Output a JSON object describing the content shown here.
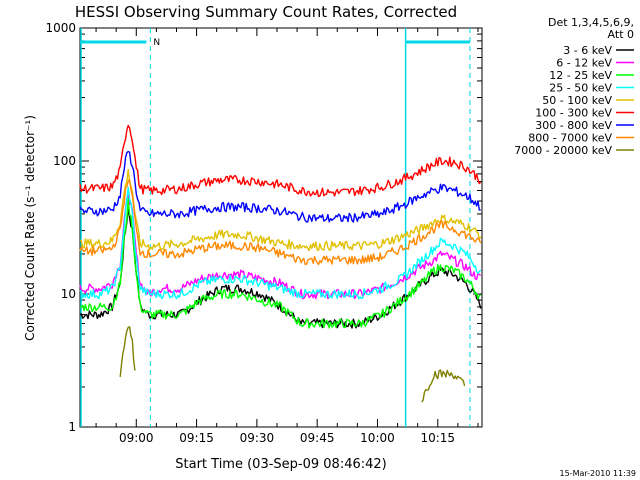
{
  "chart_data": {
    "type": "line",
    "title": "HESSI Observing Summary Count Rates, Corrected",
    "ylabel": "Corrected Count Rate (s⁻¹ detector⁻¹)",
    "xlabel": "Start Time (03-Sep-09 08:46:42)",
    "yscale": "log",
    "ylim": [
      1,
      1000
    ],
    "xlim_minutes_after_0846": [
      0,
      100
    ],
    "y_tick_labels": [
      "1",
      "10",
      "100",
      "1000"
    ],
    "x_ticks": [
      {
        "minute": 14,
        "label": "09:00"
      },
      {
        "minute": 29,
        "label": "09:15"
      },
      {
        "minute": 44,
        "label": "09:30"
      },
      {
        "minute": 59,
        "label": "09:45"
      },
      {
        "minute": 74,
        "label": "10:00"
      },
      {
        "minute": 89,
        "label": "10:15"
      }
    ],
    "legend_header": [
      "Det 1,3,4,5,6,9,",
      "Att 0"
    ],
    "legend_position": "right",
    "footer_date": "15-Mar-2010 11:39",
    "night_label": "N",
    "x": [
      0,
      5,
      8,
      10,
      11,
      12,
      13,
      14,
      15,
      17,
      20,
      25,
      30,
      35,
      40,
      45,
      50,
      55,
      60,
      65,
      70,
      75,
      80,
      85,
      88,
      90,
      93,
      96,
      98,
      100
    ],
    "series": [
      {
        "name": "3 - 6 keV",
        "color": "#000000",
        "values": [
          7,
          7,
          8,
          12,
          25,
          44,
          30,
          15,
          8,
          7,
          7,
          7,
          9,
          11,
          11,
          10,
          8,
          6,
          6,
          6,
          6,
          7,
          9,
          12,
          14,
          15,
          14,
          12,
          10,
          8
        ]
      },
      {
        "name": "6 - 12 keV",
        "color": "#ff00ff",
        "values": [
          11,
          11,
          12,
          17,
          35,
          58,
          40,
          20,
          12,
          10,
          11,
          11,
          13,
          14,
          14,
          13,
          12,
          10,
          10,
          10,
          10,
          11,
          13,
          16,
          18,
          20,
          18,
          16,
          14,
          13
        ]
      },
      {
        "name": "12 - 25 keV",
        "color": "#00ff00",
        "values": [
          8,
          8,
          8,
          12,
          26,
          48,
          32,
          14,
          8,
          7,
          7,
          7,
          9,
          10,
          10,
          9,
          8,
          6,
          6,
          6,
          6,
          7,
          9,
          12,
          15,
          16,
          15,
          13,
          11,
          9
        ]
      },
      {
        "name": "25 - 50 keV",
        "color": "#00ffff",
        "values": [
          10,
          10,
          11,
          16,
          33,
          62,
          40,
          18,
          11,
          10,
          10,
          10,
          12,
          13,
          13,
          12,
          11,
          10,
          10,
          10,
          10,
          11,
          13,
          18,
          22,
          25,
          23,
          20,
          17,
          14
        ]
      },
      {
        "name": "50 - 100 keV",
        "color": "#e0c000",
        "values": [
          24,
          24,
          25,
          35,
          58,
          82,
          60,
          34,
          24,
          23,
          23,
          24,
          26,
          28,
          28,
          26,
          24,
          23,
          23,
          23,
          23,
          24,
          27,
          31,
          35,
          37,
          35,
          33,
          30,
          27
        ]
      },
      {
        "name": "100 - 300 keV",
        "color": "#ff0000",
        "values": [
          62,
          62,
          64,
          85,
          140,
          195,
          150,
          90,
          62,
          60,
          60,
          62,
          68,
          72,
          72,
          70,
          66,
          60,
          58,
          58,
          60,
          64,
          72,
          85,
          95,
          100,
          98,
          90,
          80,
          70
        ]
      },
      {
        "name": "300 - 800 keV",
        "color": "#0000ff",
        "values": [
          42,
          42,
          43,
          55,
          90,
          120,
          95,
          60,
          42,
          40,
          40,
          40,
          43,
          45,
          45,
          44,
          42,
          38,
          37,
          37,
          38,
          40,
          46,
          55,
          60,
          63,
          60,
          55,
          50,
          44
        ]
      },
      {
        "name": "800 - 7000 keV",
        "color": "#ff8800",
        "values": [
          21,
          21,
          22,
          30,
          52,
          75,
          55,
          30,
          21,
          20,
          20,
          20,
          22,
          23,
          23,
          22,
          20,
          18,
          18,
          18,
          18,
          19,
          22,
          27,
          31,
          33,
          31,
          28,
          26,
          23
        ]
      },
      {
        "name": "7000 - 20000 keV",
        "color": "#808000",
        "values": [
          null,
          null,
          null,
          2.5,
          4,
          6,
          4.5,
          2,
          null,
          null,
          null,
          null,
          null,
          null,
          null,
          null,
          null,
          null,
          null,
          null,
          null,
          null,
          null,
          1.6,
          2.5,
          2.5,
          2.5,
          2,
          null,
          null
        ]
      }
    ],
    "attenuator_markers_minutes": [
      0,
      17.5,
      81,
      97
    ]
  },
  "colors": {
    "marker": "#00d8e8",
    "axis": "#000000"
  }
}
